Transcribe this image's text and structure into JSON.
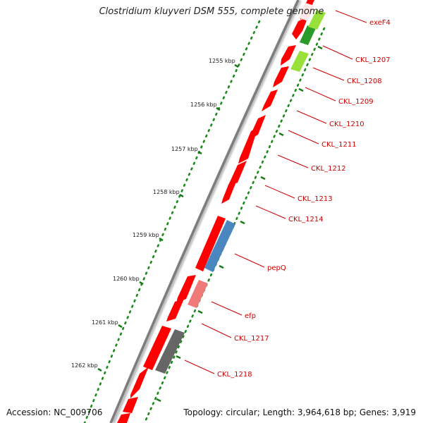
{
  "title": "Clostridium kluyveri DSM 555, complete genome",
  "footer": {
    "accession": "Accession: NC_009706",
    "summary": "Topology: circular; Length: 3,964,618 bp; Genes: 3,919"
  },
  "kbp_labels": [
    "1255 kbp",
    "1256 kbp",
    "1257 kbp",
    "1258 kbp",
    "1259 kbp",
    "1260 kbp",
    "1261 kbp",
    "1262 kbp"
  ],
  "gene_labels": [
    "exeF4",
    "CKL_1207",
    "CKL_1208",
    "CKL_1209",
    "CKL_1210",
    "CKL_1211",
    "CKL_1212",
    "CKL_1213",
    "CKL_1214",
    "pepQ",
    "efp",
    "CKL_1217",
    "CKL_1218"
  ],
  "colors": {
    "backbone": "#7a7a7a",
    "gene_red": "#ff0000",
    "gene_blue": "#4a86c0",
    "gene_pink": "#f07a7a",
    "gene_gray": "#666666",
    "gene_green": "#2a9a2a",
    "gene_lightgreen": "#9ae03a",
    "gc_dots": "#1a8a1a",
    "label_red": "#cc0000"
  }
}
